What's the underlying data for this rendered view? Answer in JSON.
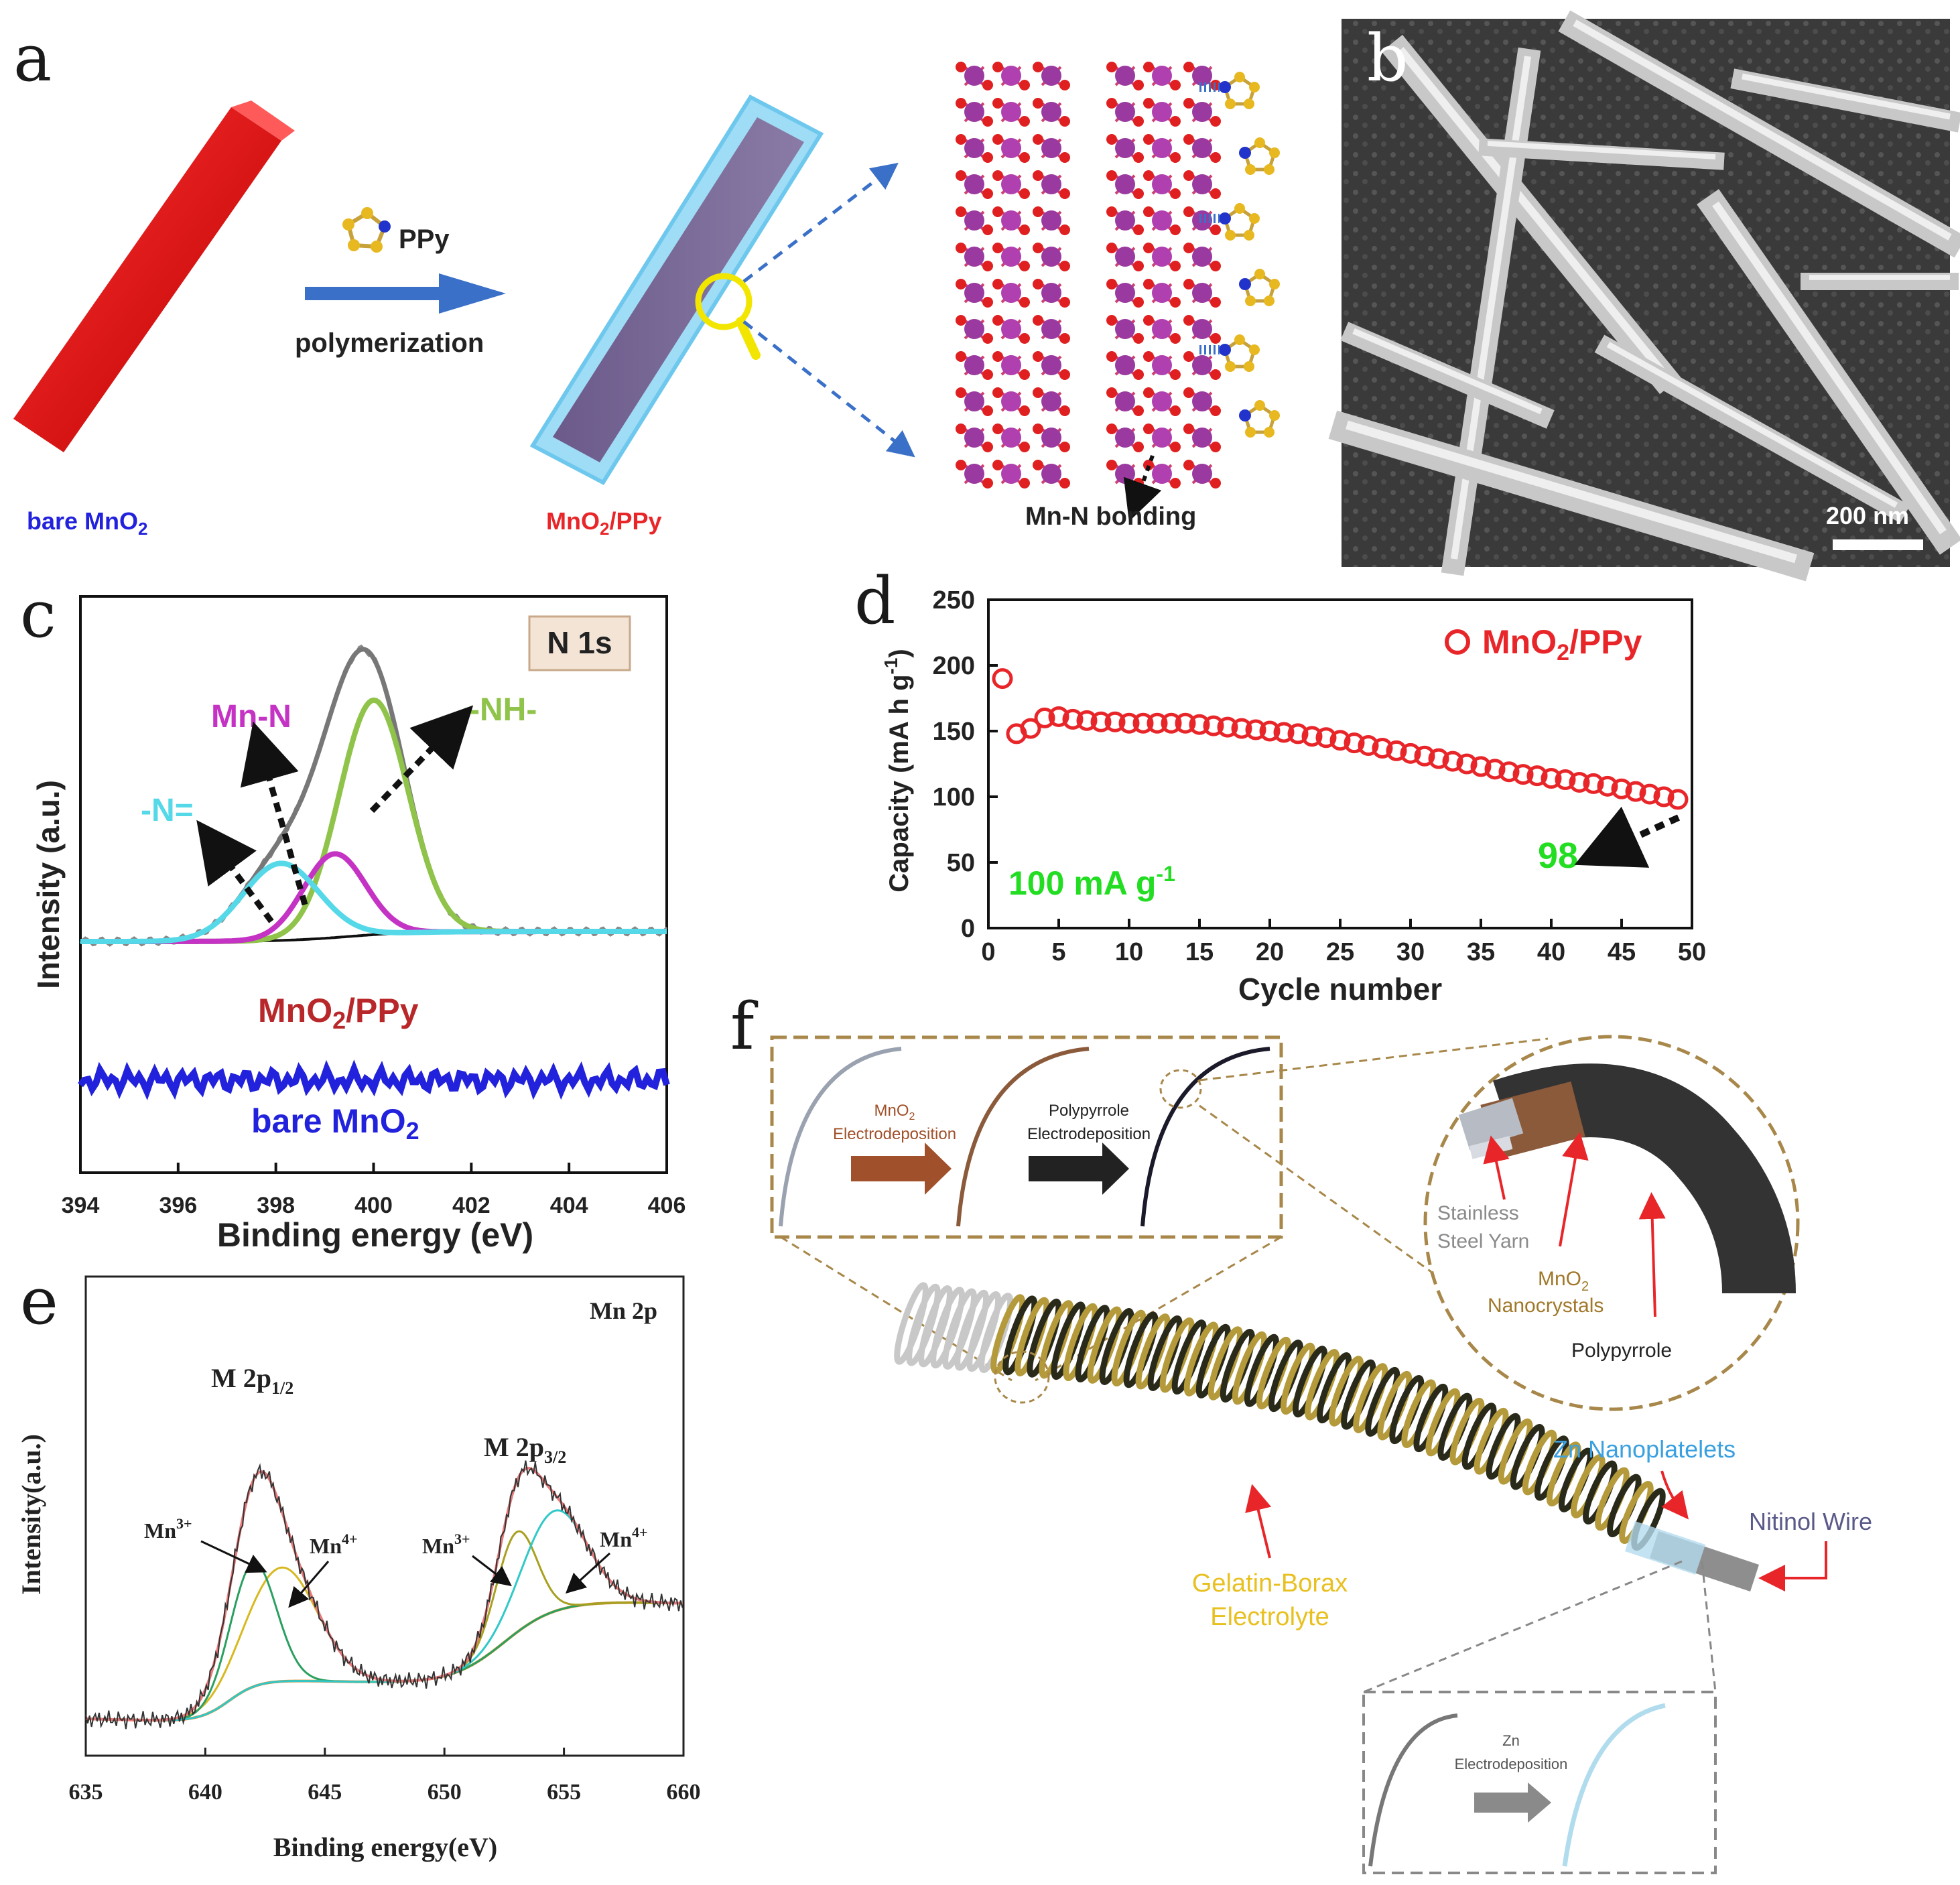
{
  "panel_labels": {
    "a": "a",
    "b": "b",
    "c": "c",
    "d": "d",
    "e": "e",
    "f": "f"
  },
  "panel_a": {
    "ppy_label": "PPy",
    "process": "polymerization",
    "bare_prefix": "bare MnO",
    "bare_sub": "2",
    "composite_prefix": "MnO",
    "composite_sub": "2",
    "composite_suffix": "/PPy",
    "bonding": "Mn-N bonding"
  },
  "panel_b": {
    "scale_bar": "200 nm"
  },
  "panel_c": {
    "badge": "N 1s",
    "labels": {
      "mn_n": "Mn-N",
      "nh": "-NH-",
      "neq": "-N="
    },
    "sample1_prefix": "MnO",
    "sample1_sub": "2",
    "sample1_suffix": "/PPy",
    "sample2_prefix": "bare MnO",
    "sample2_sub": "2",
    "xlabel": "Binding energy (eV)",
    "ylabel": "Intensity  (a.u.)",
    "xticks": [
      "394",
      "396",
      "398",
      "400",
      "402",
      "404",
      "406"
    ]
  },
  "panel_d": {
    "legend_prefix": "MnO",
    "legend_sub": "2",
    "legend_suffix": "/PPy",
    "rate_text": "100 mA g",
    "rate_sup": "-1",
    "final_label": "98",
    "xlabel": "Cycle number",
    "ylabel": "Capacity (mA h g",
    "ylabel_sup": "-1",
    "ylabel_end": ")",
    "xticks": [
      "0",
      "5",
      "10",
      "15",
      "20",
      "25",
      "30",
      "35",
      "40",
      "45",
      "50"
    ],
    "yticks": [
      "0",
      "50",
      "100",
      "150",
      "200",
      "250"
    ]
  },
  "panel_e": {
    "title": "Mn 2p",
    "peak1_prefix": "M 2p",
    "peak1_sub": "1/2",
    "peak2_prefix": "M 2p",
    "peak2_sub": "3/2",
    "mn3": "Mn",
    "mn3_sup": "3+",
    "mn4": "Mn",
    "mn4_sup": "4+",
    "xlabel": "Binding energy(eV)",
    "ylabel": "Intensity(a.u.)",
    "xticks": [
      "635",
      "640",
      "645",
      "650",
      "655",
      "660"
    ]
  },
  "panel_f": {
    "step1_prefix": "MnO",
    "step1_sub": "2",
    "step1_line2": "Electrodeposition",
    "step2_line1": "Polypyrrole",
    "step2_line2": "Electrodeposition",
    "layer1_line1": "Stainless",
    "layer1_line2": "Steel Yarn",
    "layer2_prefix": "MnO",
    "layer2_sub": "2",
    "layer2_line2": "Nanocrystals",
    "layer3": "Polypyrrole",
    "zn_label": "Zn Nanoplatelets",
    "wire_label": "Nitinol Wire",
    "electrolyte_line1": "Gelatin-Borax",
    "electrolyte_line2": "Electrolyte",
    "zn_step_line1": "Zn",
    "zn_step_line2": "Electrodeposition"
  },
  "colors": {
    "red": "#e8262a",
    "blue": "#2222dd",
    "green": "#22dd22",
    "magenta": "#c433c4",
    "cyan": "#55d8e8",
    "olive": "#8fc34a",
    "brown": "#8a6a3a"
  },
  "chart_data": [
    {
      "type": "scatter",
      "title": "",
      "xlabel": "Cycle number",
      "ylabel": "Capacity (mA h g-1)",
      "xlim": [
        0,
        50
      ],
      "ylim": [
        0,
        250
      ],
      "series": [
        {
          "name": "MnO2/PPy",
          "x": [
            1,
            2,
            3,
            4,
            5,
            6,
            7,
            8,
            9,
            10,
            11,
            12,
            13,
            14,
            15,
            16,
            17,
            18,
            19,
            20,
            21,
            22,
            23,
            24,
            25,
            26,
            27,
            28,
            29,
            30,
            31,
            32,
            33,
            34,
            35,
            36,
            37,
            38,
            39,
            40,
            41,
            42,
            43,
            44,
            45,
            46,
            47,
            48,
            49
          ],
          "y": [
            190,
            148,
            152,
            160,
            161,
            159,
            158,
            157,
            157,
            156,
            156,
            156,
            156,
            156,
            155,
            154,
            153,
            152,
            151,
            150,
            149,
            148,
            146,
            145,
            143,
            141,
            139,
            137,
            135,
            133,
            131,
            129,
            127,
            125,
            123,
            121,
            119,
            117,
            116,
            114,
            113,
            111,
            110,
            108,
            106,
            104,
            102,
            100,
            98
          ]
        }
      ]
    },
    {
      "type": "line",
      "title": "N 1s",
      "xlabel": "Binding energy (eV)",
      "ylabel": "Intensity (a.u.)",
      "xlim": [
        394,
        406
      ],
      "series": [
        {
          "name": "-N=",
          "peak_center": 398.1
        },
        {
          "name": "Mn-N",
          "peak_center": 399.2
        },
        {
          "name": "-NH-",
          "peak_center": 400.0
        }
      ]
    },
    {
      "type": "line",
      "title": "Mn 2p",
      "xlabel": "Binding energy(eV)",
      "ylabel": "Intensity(a.u.)",
      "xlim": [
        635,
        660
      ],
      "series": [
        {
          "name": "Mn3+ (2p1/2)",
          "peak_center": 642.0
        },
        {
          "name": "Mn4+ (2p1/2)",
          "peak_center": 643.2
        },
        {
          "name": "Mn3+ (2p3/2)",
          "peak_center": 653.0
        },
        {
          "name": "Mn4+ (2p3/2)",
          "peak_center": 654.6
        }
      ]
    }
  ]
}
